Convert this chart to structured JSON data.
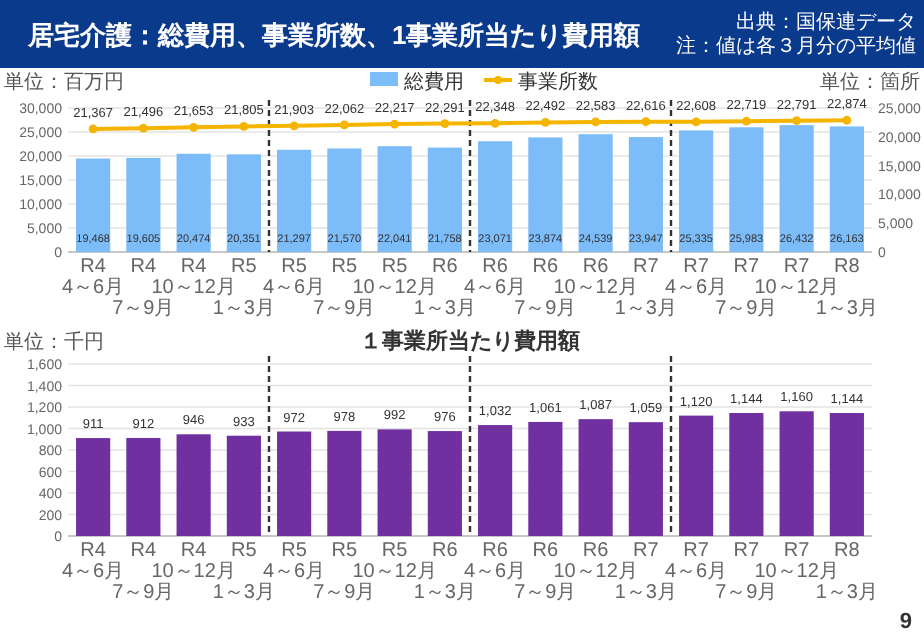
{
  "chart_data": [
    {
      "type": "bar",
      "title": "居宅介護：総費用、事業所数、1事業所当たり費用額",
      "annotations": [
        "出典：国保連データ",
        "注：値は各３月分の平均値"
      ],
      "categories": [
        "R4 4～6月",
        "R4 7～9月",
        "R4 10～12月",
        "R5 1～3月",
        "R5 4～6月",
        "R5 7～9月",
        "R5 10～12月",
        "R6 1～3月",
        "R6 4～6月",
        "R6 7～9月",
        "R6 10～12月",
        "R7 1～3月",
        "R7 4～6月",
        "R7 7～9月",
        "R7 10～12月",
        "R8 1～3月"
      ],
      "series": [
        {
          "name": "総費用",
          "type": "bar",
          "color": "#7cbcf8",
          "values": [
            19468,
            19605,
            20474,
            20351,
            21297,
            21570,
            22041,
            21758,
            23071,
            23874,
            24539,
            23947,
            25335,
            25983,
            26432,
            26163
          ],
          "value_labels": [
            "19,468",
            "19,605",
            "20,474",
            "20,351",
            "21,297",
            "21,570",
            "22,041",
            "21,758",
            "23,071",
            "23,874",
            "24,539",
            "23,947",
            "25,335",
            "25,983",
            "26,432",
            "26,163"
          ]
        },
        {
          "name": "事業所数",
          "type": "line",
          "axis": "y2",
          "color": "#f5b400",
          "marker": "circle",
          "values": [
            21367,
            21496,
            21653,
            21805,
            21903,
            22062,
            22217,
            22291,
            22348,
            22492,
            22583,
            22616,
            22608,
            22719,
            22791,
            22874
          ],
          "value_labels": [
            "21,367",
            "21,496",
            "21,653",
            "21,805",
            "21,903",
            "22,062",
            "22,217",
            "22,291",
            "22,348",
            "22,492",
            "22,583",
            "22,616",
            "22,608",
            "22,719",
            "22,791",
            "22,874"
          ]
        }
      ],
      "ylabel": "単位：百万円",
      "y2label": "単位：箇所",
      "ylim": [
        0,
        30000
      ],
      "yticks": [
        0,
        {
          "value": 5000,
          "label": "5,000"
        },
        {
          "value": 10000,
          "label": "10,000"
        },
        {
          "value": 15000,
          "label": "15,000"
        },
        {
          "value": 20000,
          "label": "20,000"
        },
        {
          "value": 25000,
          "label": "25,000"
        },
        {
          "value": 30000,
          "label": "30,000"
        }
      ],
      "y2lim": [
        0,
        25000
      ],
      "y2ticks": [
        0,
        {
          "value": 5000,
          "label": "5,000"
        },
        {
          "value": 10000,
          "label": "10,000"
        },
        {
          "value": 15000,
          "label": "15,000"
        },
        {
          "value": 20000,
          "label": "20,000"
        },
        {
          "value": 25000,
          "label": "25,000"
        }
      ],
      "grid": "y",
      "legend": "top"
    },
    {
      "type": "bar",
      "title": "１事業所当たり費用額",
      "ylabel": "単位：千円",
      "annotations": [
        "9"
      ],
      "categories": [
        "R4 4～6月",
        "R4 7～9月",
        "R4 10～12月",
        "R5 1～3月",
        "R5 4～6月",
        "R5 7～9月",
        "R5 10～12月",
        "R6 1～3月",
        "R6 4～6月",
        "R6 7～9月",
        "R6 10～12月",
        "R7 1～3月",
        "R7 4～6月",
        "R7 7～9月",
        "R7 10～12月",
        "R8 1～3月"
      ],
      "values": [
        911,
        912,
        946,
        933,
        972,
        978,
        992,
        976,
        1032,
        1061,
        1087,
        1059,
        1120,
        1144,
        1160,
        1144
      ],
      "color": "#7030a0",
      "ylim": [
        0,
        1600
      ],
      "yticks": [
        0,
        200,
        400,
        600,
        800,
        {
          "value": 1000,
          "label": "1,000"
        },
        {
          "value": 1200,
          "label": "1,200"
        },
        {
          "value": 1400,
          "label": "1,400"
        },
        {
          "value": 1600,
          "label": "1,600"
        }
      ],
      "value_labels": [
        "911",
        "912",
        "946",
        "933",
        "972",
        "978",
        "992",
        "976",
        "1,032",
        "1,061",
        "1,087",
        "1,059",
        "1,120",
        "1,144",
        "1,160",
        "1,144"
      ],
      "grid": "y"
    }
  ]
}
